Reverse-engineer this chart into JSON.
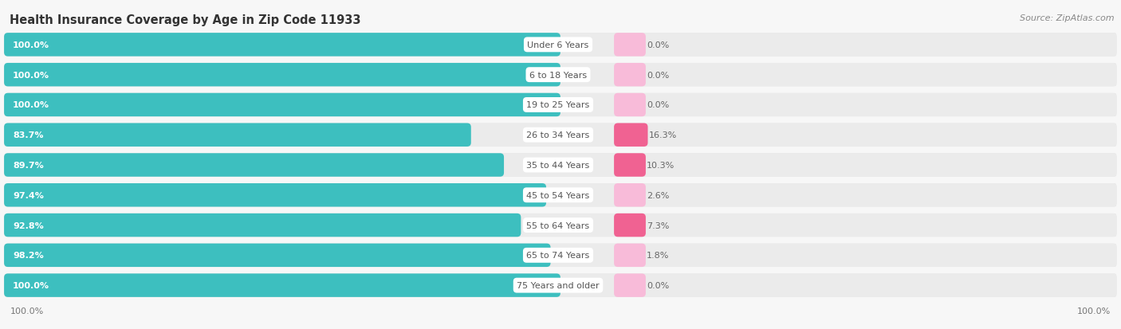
{
  "title": "Health Insurance Coverage by Age in Zip Code 11933",
  "source": "Source: ZipAtlas.com",
  "categories": [
    "Under 6 Years",
    "6 to 18 Years",
    "19 to 25 Years",
    "26 to 34 Years",
    "35 to 44 Years",
    "45 to 54 Years",
    "55 to 64 Years",
    "65 to 74 Years",
    "75 Years and older"
  ],
  "with_coverage": [
    100.0,
    100.0,
    100.0,
    83.7,
    89.7,
    97.4,
    92.8,
    98.2,
    100.0
  ],
  "without_coverage": [
    0.0,
    0.0,
    0.0,
    16.3,
    10.3,
    2.6,
    7.3,
    1.8,
    0.0
  ],
  "color_with": "#3DBFBF",
  "color_without_large": "#F06292",
  "color_without_small": "#F8BBD9",
  "color_bg_track": "#E8E8E8",
  "color_bg_figure": "#F7F7F7",
  "color_row_bg": "#FFFFFF",
  "title_fontsize": 10.5,
  "source_fontsize": 8,
  "label_fontsize": 8,
  "bar_label_fontsize": 8,
  "legend_fontsize": 9,
  "axis_label_fontsize": 8
}
